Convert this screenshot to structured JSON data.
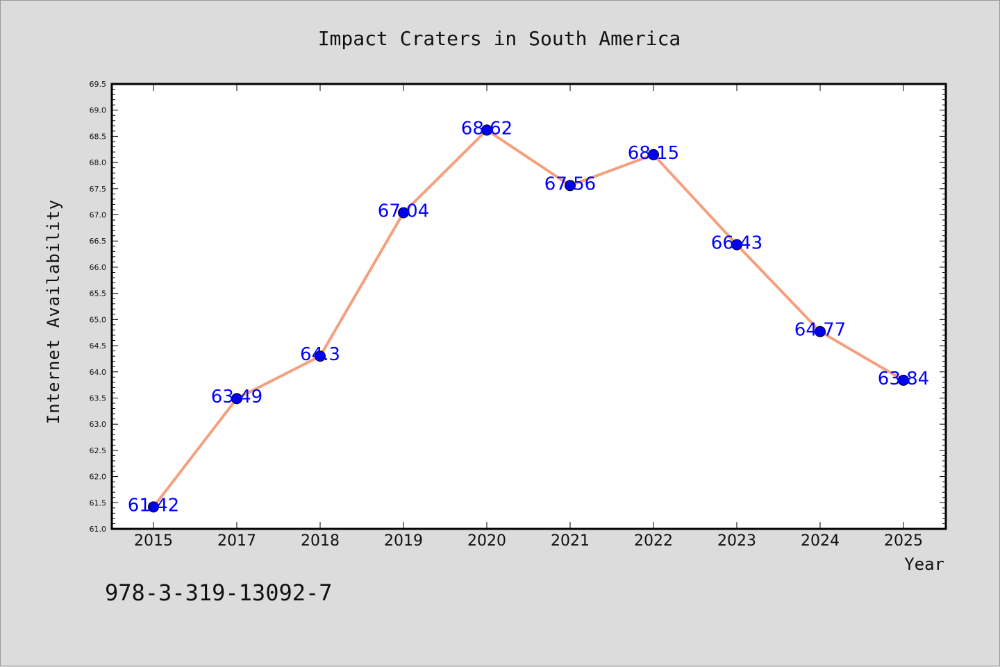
{
  "chart_data": {
    "type": "line",
    "title": "Impact Craters in South America",
    "xlabel": "Year",
    "ylabel": "Internet Availability",
    "categories": [
      "2015",
      "2017",
      "2018",
      "2019",
      "2020",
      "2021",
      "2022",
      "2023",
      "2024",
      "2025"
    ],
    "values": [
      61.42,
      63.49,
      64.3,
      67.04,
      68.62,
      67.56,
      68.15,
      66.43,
      64.77,
      63.84
    ],
    "data_labels": [
      "61.42",
      "63.49",
      "64.3",
      "67.04",
      "68.62",
      "67.56",
      "68.15",
      "66.43",
      "64.77",
      "63.84"
    ],
    "ylim": [
      61.0,
      69.5
    ],
    "yticks": [
      "61.0",
      "61.5",
      "62.0",
      "62.5",
      "63.0",
      "63.5",
      "64.0",
      "64.5",
      "65.0",
      "65.5",
      "66.0",
      "66.5",
      "67.0",
      "67.5",
      "68.0",
      "68.5",
      "69.0",
      "69.5"
    ],
    "grid": false,
    "line_color": "#f4a07f",
    "marker_color": "#0000ee",
    "label_color": "#0000ff"
  },
  "annotation": "978-3-319-13092-7"
}
